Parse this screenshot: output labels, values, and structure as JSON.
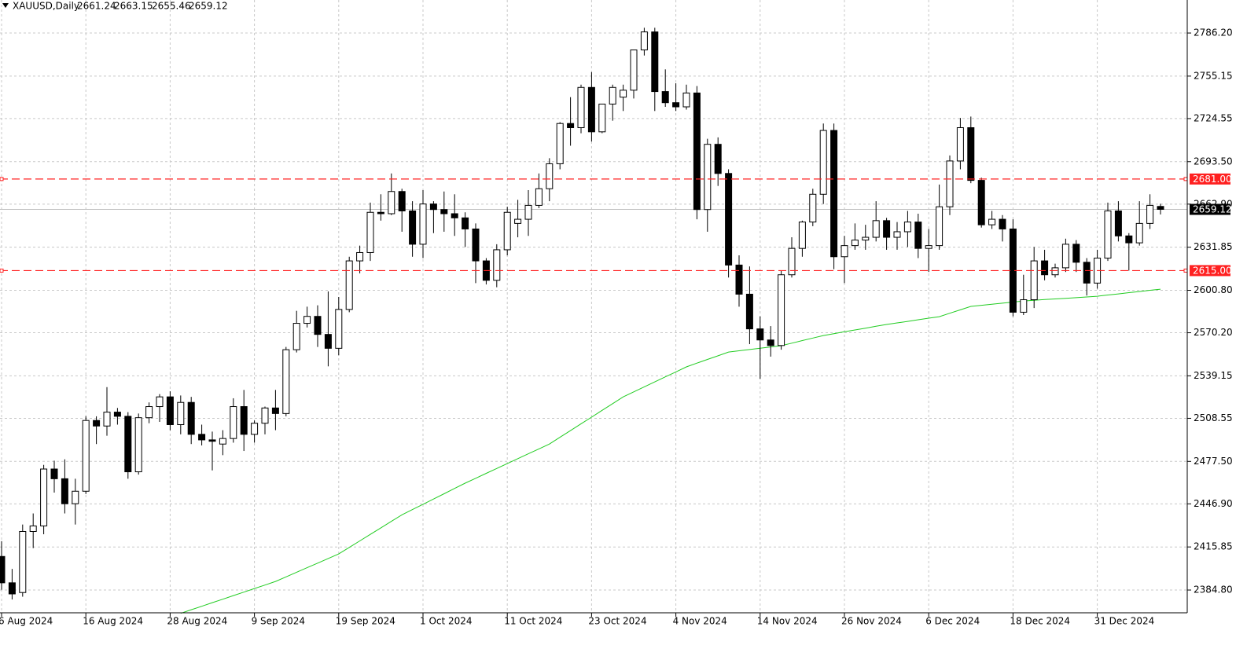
{
  "chart_data": {
    "type": "candlestick",
    "title": "XAUUSD,Daily",
    "categories": [
      "6 Aug 2024",
      null,
      null,
      null,
      null,
      null,
      null,
      null,
      "16 Aug 2024",
      null,
      null,
      null,
      null,
      null,
      null,
      null,
      "28 Aug 2024",
      null,
      null,
      null,
      null,
      null,
      null,
      null,
      "9 Sep 2024",
      null,
      null,
      null,
      null,
      null,
      null,
      null,
      "19 Sep 2024",
      null,
      null,
      null,
      null,
      null,
      null,
      null,
      "1 Oct 2024",
      null,
      null,
      null,
      null,
      null,
      null,
      null,
      "11 Oct 2024",
      null,
      null,
      null,
      null,
      null,
      null,
      null,
      "23 Oct 2024",
      null,
      null,
      null,
      null,
      null,
      null,
      null,
      "4 Nov 2024",
      null,
      null,
      null,
      null,
      null,
      null,
      null,
      "14 Nov 2024",
      null,
      null,
      null,
      null,
      null,
      null,
      null,
      "26 Nov 2024",
      null,
      null,
      null,
      null,
      null,
      null,
      null,
      "6 Dec 2024",
      null,
      null,
      null,
      null,
      null,
      null,
      null,
      "18 Dec 2024",
      null,
      null,
      null,
      null,
      null,
      null,
      null,
      "31 Dec 2024",
      null,
      null,
      null,
      null,
      null,
      null
    ],
    "open": [
      2409,
      2390,
      2383,
      2427,
      2431,
      2472,
      2465,
      2447,
      2456,
      2507,
      2503,
      2513,
      2510,
      2470,
      2509,
      2517,
      2524,
      2504,
      2520,
      2497,
      2493,
      2490,
      2494,
      2517,
      2497,
      2505,
      2516,
      2512,
      2558,
      2577,
      2582,
      2569,
      2559,
      2587,
      2622,
      2628,
      2657,
      2656,
      2672,
      2658,
      2634,
      2663,
      2659,
      2656,
      2653,
      2645,
      2622,
      2608,
      2630,
      2649,
      2652,
      2662,
      2674,
      2692,
      2721,
      2718,
      2747,
      2715,
      2735,
      2740,
      2745,
      2774,
      2787,
      2744,
      2736,
      2733,
      2743,
      2659,
      2706,
      2685,
      2619,
      2598,
      2573,
      2565,
      2561,
      2612,
      2631,
      2650,
      2670,
      2716,
      2625,
      2633,
      2637,
      2639,
      2651,
      2639,
      2643,
      2650,
      2631,
      2633,
      2661,
      2694,
      2718,
      2680,
      2648,
      2652,
      2645,
      2585,
      2594,
      2622,
      2612,
      2617,
      2634,
      2621,
      2606,
      2624,
      2658,
      2640,
      2635,
      2649,
      2661.24
    ],
    "high": [
      2420,
      2400,
      2432,
      2440,
      2475,
      2478,
      2479,
      2465,
      2510,
      2510,
      2531,
      2516,
      2513,
      2512,
      2520,
      2526,
      2528,
      2525,
      2524,
      2504,
      2499,
      2500,
      2523,
      2529,
      2507,
      2517,
      2529,
      2560,
      2586,
      2589,
      2590,
      2600,
      2596,
      2625,
      2633,
      2664,
      2670,
      2685,
      2674,
      2665,
      2673,
      2665,
      2672,
      2670,
      2657,
      2649,
      2624,
      2634,
      2661,
      2666,
      2673,
      2685,
      2696,
      2722,
      2740,
      2749,
      2758,
      2735,
      2749,
      2749,
      2774,
      2790,
      2790,
      2760,
      2750,
      2749,
      2748,
      2710,
      2711,
      2688,
      2626,
      2618,
      2582,
      2575,
      2615,
      2639,
      2651,
      2674,
      2721,
      2721,
      2640,
      2649,
      2648,
      2665,
      2653,
      2650,
      2658,
      2656,
      2645,
      2677,
      2698,
      2725,
      2726,
      2682,
      2658,
      2655,
      2652,
      2612,
      2632,
      2630,
      2620,
      2638,
      2637,
      2624,
      2630,
      2664,
      2665,
      2642,
      2665,
      2670,
      2663.15
    ],
    "low": [
      2385,
      2378,
      2380,
      2415,
      2425,
      2455,
      2440,
      2432,
      2454,
      2490,
      2496,
      2504,
      2465,
      2468,
      2505,
      2506,
      2500,
      2497,
      2490,
      2489,
      2471,
      2482,
      2491,
      2485,
      2491,
      2497,
      2500,
      2510,
      2556,
      2574,
      2560,
      2546,
      2554,
      2585,
      2613,
      2622,
      2651,
      2655,
      2643,
      2625,
      2624,
      2642,
      2643,
      2640,
      2632,
      2606,
      2605,
      2603,
      2626,
      2639,
      2640,
      2660,
      2665,
      2688,
      2705,
      2714,
      2708,
      2714,
      2723,
      2730,
      2739,
      2770,
      2730,
      2733,
      2730,
      2731,
      2652,
      2643,
      2676,
      2610,
      2589,
      2562,
      2537,
      2553,
      2558,
      2610,
      2625,
      2647,
      2663,
      2616,
      2606,
      2630,
      2630,
      2636,
      2630,
      2630,
      2632,
      2624,
      2614,
      2630,
      2655,
      2688,
      2678,
      2646,
      2645,
      2636,
      2582,
      2583,
      2588,
      2608,
      2610,
      2614,
      2614,
      2597,
      2602,
      2622,
      2636,
      2615,
      2633,
      2645,
      2655.46
    ],
    "close": [
      2390,
      2382,
      2427,
      2431,
      2472,
      2465,
      2447,
      2456,
      2507,
      2503,
      2513,
      2510,
      2470,
      2509,
      2517,
      2524,
      2504,
      2520,
      2497,
      2493,
      2492,
      2494,
      2517,
      2497,
      2505,
      2516,
      2512,
      2558,
      2577,
      2582,
      2569,
      2559,
      2587,
      2622,
      2628,
      2657,
      2656,
      2672,
      2658,
      2634,
      2663,
      2659,
      2656,
      2653,
      2645,
      2622,
      2608,
      2630,
      2657,
      2652,
      2662,
      2674,
      2692,
      2721,
      2718,
      2747,
      2715,
      2735,
      2747,
      2745,
      2774,
      2787,
      2744,
      2736,
      2733,
      2743,
      2659,
      2706,
      2685,
      2619,
      2598,
      2573,
      2565,
      2561,
      2612,
      2631,
      2650,
      2670,
      2716,
      2625,
      2633,
      2637,
      2639,
      2651,
      2639,
      2643,
      2650,
      2631,
      2633,
      2661,
      2694,
      2718,
      2680,
      2648,
      2652,
      2645,
      2585,
      2594,
      2622,
      2612,
      2617,
      2634,
      2621,
      2606,
      2624,
      2658,
      2640,
      2635,
      2649,
      2662,
      2659.12
    ],
    "ma": {
      "color": "#22cc22",
      "values": [
        null,
        null,
        null,
        null,
        null,
        null,
        null,
        null,
        null,
        null,
        null,
        null,
        null,
        null,
        null,
        null,
        null,
        2368,
        2370.6,
        2373.1,
        2375.7,
        2378.2,
        2380.8,
        2383.3,
        2385.9,
        2388.4,
        2391,
        2394.3,
        2397.6,
        2400.9,
        2404.2,
        2407.5,
        2410.8,
        2415.5,
        2420.2,
        2424.9,
        2429.6,
        2434.3,
        2439,
        2442.8,
        2446.6,
        2450.4,
        2454.2,
        2458,
        2461.8,
        2465.3,
        2468.9,
        2472.4,
        2475.9,
        2479.5,
        2483,
        2486.5,
        2490,
        2494.9,
        2499.7,
        2504.6,
        2509.4,
        2514.3,
        2519.1,
        2524,
        2527.6,
        2531.2,
        2534.8,
        2538.4,
        2542,
        2545.6,
        2548.3,
        2551,
        2553.6,
        2556.3,
        2557.2,
        2558.1,
        2559.1,
        2560,
        2560.9,
        2562.7,
        2564.6,
        2566.4,
        2568.2,
        2569.5,
        2570.9,
        2572.2,
        2573.5,
        2574.9,
        2576.2,
        2577.3,
        2578.4,
        2579.6,
        2580.7,
        2581.8,
        2584.3,
        2586.7,
        2589.2,
        2590,
        2590.8,
        2591.5,
        2592.3,
        2593.1,
        2593.6,
        2594.1,
        2594.6,
        2595,
        2595.5,
        2596,
        2596.5,
        2597.4,
        2598.2,
        2599.1,
        2599.9,
        2600.8,
        2601.6
      ]
    },
    "ylim": [
      2368.4,
      2810
    ],
    "yticks": [
      {
        "value": 2786.2,
        "label": "2786.20"
      },
      {
        "value": 2755.15,
        "label": "2755.15"
      },
      {
        "value": 2724.55,
        "label": "2724.55"
      },
      {
        "value": 2693.5,
        "label": "2693.50"
      },
      {
        "value": 2662.9,
        "label": "2662.90"
      },
      {
        "value": 2631.85,
        "label": "2631.85"
      },
      {
        "value": 2600.8,
        "label": "2600.80"
      },
      {
        "value": 2570.2,
        "label": "2570.20"
      },
      {
        "value": 2539.15,
        "label": "2539.15"
      },
      {
        "value": 2508.55,
        "label": "2508.55"
      },
      {
        "value": 2477.5,
        "label": "2477.50"
      },
      {
        "value": 2446.9,
        "label": "2446.90"
      },
      {
        "value": 2415.85,
        "label": "2415.85"
      },
      {
        "value": 2384.8,
        "label": "2384.80"
      }
    ],
    "hlines": [
      {
        "value": 2681,
        "label": "2681.00",
        "color": "#ff2020"
      },
      {
        "value": 2615,
        "label": "2615.00",
        "color": "#ff2020"
      }
    ],
    "price_line": {
      "value": 2659.12,
      "label": "2659.12",
      "color": "#c0c0c0"
    },
    "grid": true
  }
}
